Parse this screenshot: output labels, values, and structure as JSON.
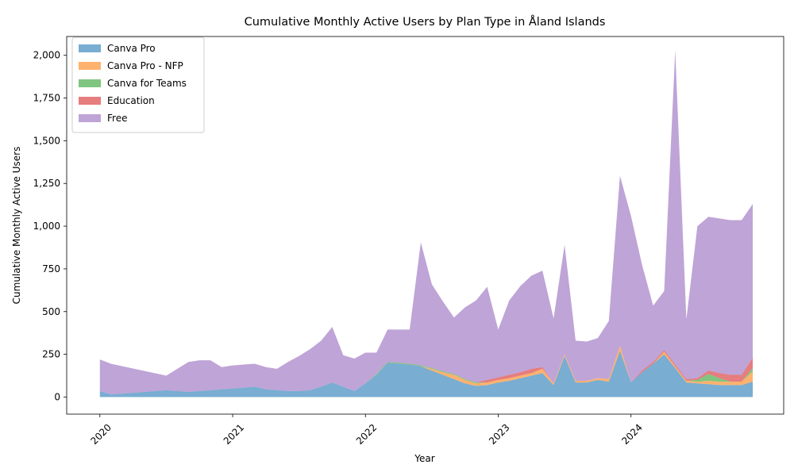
{
  "chart_data": {
    "type": "area",
    "stacked": true,
    "title": "Cumulative Monthly Active Users by Plan Type in Åland Islands",
    "xlabel": "Year",
    "ylabel": "Cumulative Monthly Active Users",
    "x_ticks": [
      2020,
      2021,
      2022,
      2023,
      2024
    ],
    "y_ticks": [
      0,
      250,
      500,
      750,
      1000,
      1250,
      1500,
      1750,
      2000
    ],
    "y_tick_labels": [
      "0",
      "250",
      "500",
      "750",
      "1,000",
      "1,250",
      "1,500",
      "1,750",
      "2,000"
    ],
    "xlim": [
      2019.75,
      2025.15
    ],
    "ylim": [
      -100,
      2110
    ],
    "grid": false,
    "legend_position": "upper-left",
    "colors": {
      "Canva Pro": "#1f77b4",
      "Canva Pro - NFP": "#ff7f0e",
      "Canva for Teams": "#2ca02c",
      "Education": "#d62728",
      "Free": "#9467bd"
    },
    "alpha": 0.6,
    "x": [
      2020.0,
      2020.083,
      2020.5,
      2020.667,
      2020.75,
      2020.833,
      2020.917,
      2021.0,
      2021.083,
      2021.167,
      2021.25,
      2021.333,
      2021.417,
      2021.5,
      2021.583,
      2021.667,
      2021.75,
      2021.833,
      2021.917,
      2022.0,
      2022.083,
      2022.167,
      2022.25,
      2022.333,
      2022.417,
      2022.5,
      2022.583,
      2022.667,
      2022.75,
      2022.833,
      2022.917,
      2023.0,
      2023.083,
      2023.167,
      2023.25,
      2023.333,
      2023.417,
      2023.5,
      2023.583,
      2023.667,
      2023.75,
      2023.833,
      2023.917,
      2024.0,
      2024.083,
      2024.167,
      2024.25,
      2024.333,
      2024.417,
      2024.5,
      2024.583,
      2024.667,
      2024.75,
      2024.833,
      2024.917
    ],
    "series": [
      {
        "name": "Canva Pro",
        "values": [
          35,
          15,
          40,
          30,
          35,
          40,
          45,
          50,
          55,
          60,
          45,
          40,
          35,
          35,
          40,
          60,
          85,
          60,
          35,
          80,
          130,
          200,
          195,
          190,
          180,
          155,
          130,
          105,
          80,
          65,
          70,
          85,
          95,
          110,
          125,
          140,
          70,
          240,
          85,
          85,
          100,
          90,
          270,
          85,
          145,
          195,
          250,
          170,
          85,
          80,
          75,
          70,
          70,
          70,
          90
        ]
      },
      {
        "name": "Canva Pro - NFP",
        "values": [
          0,
          0,
          0,
          0,
          0,
          0,
          0,
          0,
          0,
          0,
          0,
          0,
          0,
          0,
          0,
          0,
          0,
          0,
          0,
          0,
          0,
          0,
          0,
          0,
          0,
          10,
          15,
          25,
          20,
          15,
          15,
          15,
          15,
          15,
          15,
          25,
          10,
          10,
          10,
          10,
          10,
          15,
          30,
          0,
          0,
          0,
          15,
          10,
          10,
          10,
          20,
          20,
          20,
          20,
          60
        ]
      },
      {
        "name": "Canva for Teams",
        "values": [
          0,
          0,
          0,
          0,
          0,
          0,
          0,
          0,
          0,
          0,
          0,
          0,
          0,
          0,
          0,
          0,
          0,
          0,
          0,
          0,
          5,
          5,
          5,
          5,
          5,
          5,
          5,
          5,
          5,
          5,
          0,
          0,
          0,
          0,
          0,
          0,
          0,
          0,
          0,
          0,
          0,
          0,
          0,
          0,
          0,
          0,
          0,
          0,
          0,
          10,
          40,
          20,
          0,
          0,
          20
        ]
      },
      {
        "name": "Education",
        "values": [
          0,
          0,
          0,
          0,
          0,
          0,
          0,
          0,
          0,
          0,
          0,
          0,
          0,
          0,
          0,
          0,
          0,
          0,
          0,
          0,
          0,
          0,
          0,
          0,
          0,
          0,
          0,
          0,
          0,
          0,
          15,
          15,
          20,
          20,
          25,
          10,
          0,
          0,
          0,
          0,
          0,
          0,
          0,
          0,
          10,
          10,
          10,
          10,
          10,
          10,
          20,
          30,
          40,
          40,
          60
        ]
      },
      {
        "name": "Free",
        "values": [
          185,
          180,
          85,
          175,
          180,
          175,
          130,
          135,
          135,
          135,
          130,
          125,
          170,
          205,
          240,
          270,
          325,
          185,
          190,
          180,
          125,
          190,
          195,
          200,
          720,
          490,
          410,
          330,
          420,
          480,
          545,
          280,
          435,
          505,
          545,
          565,
          380,
          640,
          235,
          230,
          235,
          340,
          995,
          975,
          620,
          330,
          345,
          1840,
          350,
          890,
          900,
          905,
          905,
          905,
          900
        ]
      }
    ]
  }
}
